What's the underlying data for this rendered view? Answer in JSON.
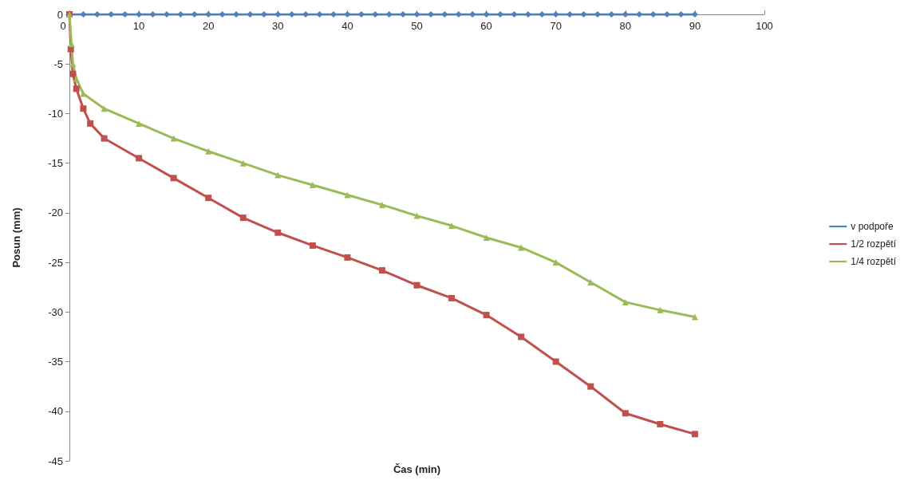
{
  "chart_data": {
    "type": "line",
    "xlabel": "Čas (min)",
    "ylabel": "Posun (mm)",
    "xlim": [
      0,
      100
    ],
    "xticks": [
      0,
      10,
      20,
      30,
      40,
      50,
      60,
      70,
      80,
      90,
      100
    ],
    "ylim": [
      -45,
      0
    ],
    "yticks": [
      0,
      -5,
      -10,
      -15,
      -20,
      -25,
      -30,
      -35,
      -40,
      -45
    ],
    "grid": false,
    "legend": "right",
    "line_style": "solid",
    "series": [
      {
        "name": "v podpoře",
        "color": "#4f81bd",
        "marker": "diamond",
        "x": [
          0,
          2,
          4,
          6,
          8,
          10,
          12,
          14,
          16,
          18,
          20,
          22,
          24,
          26,
          28,
          30,
          32,
          34,
          36,
          38,
          40,
          42,
          44,
          46,
          48,
          50,
          52,
          54,
          56,
          58,
          60,
          62,
          64,
          66,
          68,
          70,
          72,
          74,
          76,
          78,
          80,
          82,
          84,
          86,
          88,
          90
        ],
        "values": [
          0,
          0,
          0,
          0,
          0,
          0,
          0,
          0,
          0,
          0,
          0,
          0,
          0,
          0,
          0,
          0,
          0,
          0,
          0,
          0,
          0,
          0,
          0,
          0,
          0,
          0,
          0,
          0,
          0,
          0,
          0,
          0,
          0,
          0,
          0,
          0,
          0,
          0,
          0,
          0,
          0,
          0,
          0,
          0,
          0,
          0
        ]
      },
      {
        "name": "1/2 rozpětí",
        "color": "#c0504d",
        "marker": "square",
        "x": [
          0,
          0.2,
          0.5,
          1,
          2,
          3,
          5,
          10,
          15,
          20,
          25,
          30,
          35,
          40,
          45,
          50,
          55,
          60,
          65,
          70,
          75,
          80,
          85,
          90
        ],
        "values": [
          0,
          -3.5,
          -6,
          -7.5,
          -9.5,
          -11,
          -12.5,
          -14.5,
          -16.5,
          -18.5,
          -20.5,
          -22,
          -23.3,
          -24.5,
          -25.8,
          -27.3,
          -28.6,
          -30.3,
          -32.5,
          -35,
          -37.5,
          -40.2,
          -41.3,
          -42.3
        ]
      },
      {
        "name": "1/4 rozpětí",
        "color": "#9bbb59",
        "marker": "triangle",
        "x": [
          0,
          0.3,
          0.5,
          1,
          2,
          5,
          10,
          15,
          20,
          25,
          30,
          35,
          40,
          45,
          50,
          55,
          60,
          65,
          70,
          75,
          80,
          85,
          90
        ],
        "values": [
          0,
          -3,
          -5,
          -6.5,
          -8,
          -9.5,
          -11,
          -12.5,
          -13.8,
          -15,
          -16.2,
          -17.2,
          -18.2,
          -19.2,
          -20.3,
          -21.3,
          -22.5,
          -23.5,
          -25,
          -27,
          -29,
          -29.8,
          -30.5
        ]
      }
    ]
  }
}
